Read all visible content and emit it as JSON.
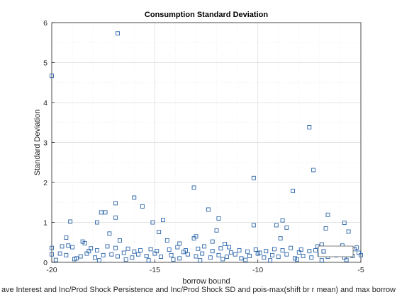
{
  "chart_data": {
    "type": "scatter",
    "title": "Consumption Standard Deviation",
    "xlabel": "borrow bound",
    "ylabel": "Standard Deviation",
    "xlim": [
      -20,
      -5
    ],
    "ylim": [
      0,
      6
    ],
    "xticks": [
      -20,
      -15,
      -10,
      -5
    ],
    "yticks": [
      0,
      1,
      2,
      3,
      4,
      5,
      6
    ],
    "grid": true,
    "marker": "square",
    "color": "#2a64a9",
    "legend": {
      "label": "ave Interest and Inc/Prod Shock Persistence and Inc/Prod Shock SD and pois-max(shift br r mean) and max borrow",
      "location": "bottom-right"
    },
    "points": [
      [
        -20.0,
        4.67
      ],
      [
        -16.8,
        5.73
      ],
      [
        -7.5,
        3.38
      ],
      [
        -7.3,
        2.31
      ],
      [
        -10.2,
        2.11
      ],
      [
        -13.1,
        1.87
      ],
      [
        -8.3,
        1.79
      ],
      [
        -16.0,
        1.62
      ],
      [
        -16.9,
        1.48
      ],
      [
        -15.6,
        1.4
      ],
      [
        -12.4,
        1.32
      ],
      [
        -17.6,
        1.25
      ],
      [
        -17.4,
        1.25
      ],
      [
        -6.6,
        1.19
      ],
      [
        -16.9,
        1.12
      ],
      [
        -11.9,
        1.1
      ],
      [
        -14.6,
        1.06
      ],
      [
        -8.8,
        1.05
      ],
      [
        -15.1,
        1.0
      ],
      [
        -19.1,
        1.02
      ],
      [
        -17.8,
        1.0
      ],
      [
        -5.8,
        0.99
      ],
      [
        -9.1,
        0.93
      ],
      [
        -10.2,
        0.93
      ],
      [
        -8.6,
        0.87
      ],
      [
        -12.0,
        0.8
      ],
      [
        -5.6,
        0.77
      ],
      [
        -14.8,
        0.76
      ],
      [
        -6.7,
        0.85
      ],
      [
        -17.2,
        0.72
      ],
      [
        -13.0,
        0.65
      ],
      [
        -13.1,
        0.6
      ],
      [
        -19.3,
        0.62
      ],
      [
        -8.9,
        0.6
      ],
      [
        -16.7,
        0.55
      ],
      [
        -14.4,
        0.55
      ],
      [
        -12.2,
        0.52
      ],
      [
        -18.5,
        0.52
      ],
      [
        -18.4,
        0.48
      ],
      [
        -13.8,
        0.47
      ],
      [
        -11.6,
        0.46
      ],
      [
        -6.9,
        0.45
      ],
      [
        -7.1,
        0.4
      ],
      [
        -5.9,
        0.42
      ],
      [
        -5.2,
        0.37
      ],
      [
        -20.0,
        0.36
      ],
      [
        -19.5,
        0.4
      ],
      [
        -19.2,
        0.42
      ],
      [
        -19.0,
        0.38
      ],
      [
        -18.1,
        0.35
      ],
      [
        -17.8,
        0.3
      ],
      [
        -17.3,
        0.4
      ],
      [
        -16.9,
        0.36
      ],
      [
        -16.3,
        0.34
      ],
      [
        -15.7,
        0.3
      ],
      [
        -15.2,
        0.33
      ],
      [
        -14.9,
        0.28
      ],
      [
        -14.3,
        0.32
      ],
      [
        -13.9,
        0.38
      ],
      [
        -13.5,
        0.3
      ],
      [
        -12.9,
        0.34
      ],
      [
        -12.6,
        0.4
      ],
      [
        -12.2,
        0.28
      ],
      [
        -11.8,
        0.35
      ],
      [
        -11.4,
        0.38
      ],
      [
        -10.9,
        0.3
      ],
      [
        -10.5,
        0.27
      ],
      [
        -10.1,
        0.32
      ],
      [
        -9.6,
        0.28
      ],
      [
        -9.2,
        0.33
      ],
      [
        -8.8,
        0.3
      ],
      [
        -8.4,
        0.36
      ],
      [
        -7.9,
        0.32
      ],
      [
        -7.5,
        0.28
      ],
      [
        -7.2,
        0.3
      ],
      [
        -6.8,
        0.34
      ],
      [
        -6.4,
        0.28
      ],
      [
        -6.0,
        0.32
      ],
      [
        -5.6,
        0.3
      ],
      [
        -5.3,
        0.33
      ],
      [
        -20.0,
        0.2
      ],
      [
        -19.6,
        0.22
      ],
      [
        -19.3,
        0.18
      ],
      [
        -18.8,
        0.1
      ],
      [
        -18.6,
        0.15
      ],
      [
        -18.3,
        0.22
      ],
      [
        -17.9,
        0.12
      ],
      [
        -17.5,
        0.18
      ],
      [
        -17.1,
        0.2
      ],
      [
        -16.8,
        0.15
      ],
      [
        -16.5,
        0.24
      ],
      [
        -16.1,
        0.12
      ],
      [
        -15.8,
        0.2
      ],
      [
        -15.4,
        0.16
      ],
      [
        -15.0,
        0.22
      ],
      [
        -14.7,
        0.14
      ],
      [
        -14.2,
        0.18
      ],
      [
        -13.8,
        0.1
      ],
      [
        -13.4,
        0.2
      ],
      [
        -13.0,
        0.15
      ],
      [
        -12.7,
        0.22
      ],
      [
        -12.3,
        0.12
      ],
      [
        -11.9,
        0.18
      ],
      [
        -11.5,
        0.14
      ],
      [
        -11.1,
        0.2
      ],
      [
        -10.8,
        0.1
      ],
      [
        -10.4,
        0.16
      ],
      [
        -10.0,
        0.22
      ],
      [
        -9.7,
        0.12
      ],
      [
        -9.3,
        0.18
      ],
      [
        -9.0,
        0.14
      ],
      [
        -8.6,
        0.2
      ],
      [
        -8.2,
        0.1
      ],
      [
        -7.8,
        0.16
      ],
      [
        -7.4,
        0.12
      ],
      [
        -7.0,
        0.2
      ],
      [
        -6.6,
        0.14
      ],
      [
        -6.2,
        0.18
      ],
      [
        -5.8,
        0.12
      ],
      [
        -5.4,
        0.16
      ],
      [
        -5.0,
        0.18
      ],
      [
        -19.8,
        0.06
      ],
      [
        -18.9,
        0.08
      ],
      [
        -17.7,
        0.05
      ],
      [
        -16.4,
        0.07
      ],
      [
        -15.3,
        0.05
      ],
      [
        -14.1,
        0.07
      ],
      [
        -12.8,
        0.05
      ],
      [
        -11.7,
        0.08
      ],
      [
        -10.6,
        0.06
      ],
      [
        -9.4,
        0.05
      ],
      [
        -8.1,
        0.07
      ],
      [
        -6.9,
        0.05
      ],
      [
        -5.7,
        0.06
      ],
      [
        -18.2,
        0.28
      ],
      [
        -16.0,
        0.27
      ],
      [
        -13.6,
        0.26
      ],
      [
        -11.3,
        0.25
      ],
      [
        -9.9,
        0.24
      ],
      [
        -8.0,
        0.25
      ],
      [
        -6.3,
        0.26
      ],
      [
        -5.1,
        0.24
      ]
    ]
  }
}
